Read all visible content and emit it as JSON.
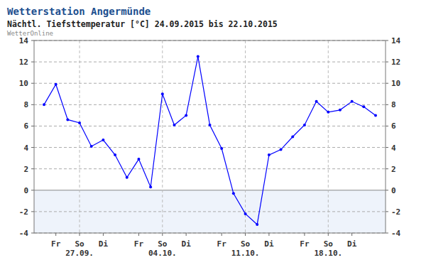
{
  "chart_data": {
    "type": "line",
    "title": "Wetterstation Angermünde",
    "subtitle": "Nächtl. Tiefsttemperatur [°C] 24.09.2015 bis 22.10.2015",
    "source": "WetterOnline",
    "categories": [
      null,
      "Fr",
      null,
      "So",
      null,
      "Di",
      null,
      null,
      "Fr",
      null,
      "So",
      null,
      "Di",
      null,
      null,
      "Fr",
      null,
      "So",
      null,
      "Di",
      null,
      null,
      "Fr",
      null,
      "So",
      null,
      "Di",
      null,
      null
    ],
    "date_labels": [
      null,
      null,
      null,
      "27.09.",
      null,
      null,
      null,
      null,
      null,
      null,
      "04.10.",
      null,
      null,
      null,
      null,
      null,
      null,
      "11.10.",
      null,
      null,
      null,
      null,
      null,
      null,
      "18.10.",
      null,
      null,
      null,
      null
    ],
    "values": [
      8.0,
      9.9,
      6.6,
      6.3,
      4.1,
      4.7,
      3.3,
      1.2,
      2.9,
      0.3,
      9.0,
      6.1,
      7.0,
      12.5,
      6.1,
      3.9,
      -0.3,
      -2.2,
      -3.2,
      3.3,
      3.8,
      5.0,
      6.1,
      8.3,
      7.3,
      7.5,
      8.3,
      7.8,
      7.0
    ],
    "color": "#0000ff",
    "marker": "circle",
    "line_style": "solid",
    "ylim": [
      -4,
      14
    ],
    "yticks": [
      -4,
      -2,
      0,
      2,
      4,
      6,
      8,
      10,
      12,
      14
    ],
    "grid": true
  }
}
